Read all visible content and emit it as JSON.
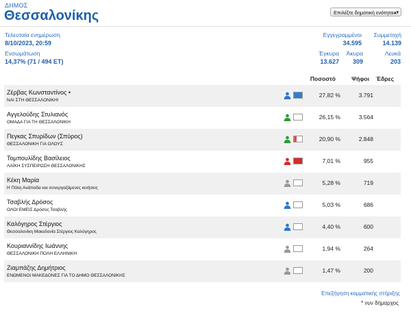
{
  "header": {
    "label": "ΔΗΜΟΣ",
    "name": "Θεσσαλονίκης",
    "select_label": "Επιλέξτε δημοτική ενότητα..."
  },
  "stats": {
    "last_update_label": "Τελευταία ενημέρωση",
    "last_update_value": "8/10/2023, 20:59",
    "integration_label": "Ενσωμάτωση",
    "integration_value": "14,37% (71 / 494 ΕΤ)",
    "registered_label": "Εγγεγραμμένοι",
    "registered_value": "34.595",
    "turnout_label": "Συμμετοχή",
    "turnout_value": "14.139",
    "valid_label": "Έγκυρα",
    "valid_value": "13.627",
    "invalid_label": "Άκυρα",
    "invalid_value": "309",
    "blank_label": "Λευκά",
    "blank_value": "203"
  },
  "table": {
    "headers": {
      "percent": "Ποσοστό",
      "votes": "Ψήφοι",
      "seats": "Έδρες"
    },
    "rows": [
      {
        "name": "Ζέρβας Κωνσταντίνος •",
        "party": "ΝΑΙ ΣΤΗ ΘΕΣΣΑΛΟΝΙΚΗ!",
        "percent": "27,82 %",
        "votes": "3.791",
        "person_color": "#2a77c9",
        "fill_color": "#2f7fd0",
        "fill_fraction": 1.0
      },
      {
        "name": "Αγγελούδης Στυλιανός",
        "party": "ΟΜΑΔΑ ΓΙΑ ΤΗ ΘΕΣΣΑΛΟΝΙΚΗ",
        "percent": "26,15 %",
        "votes": "3.564",
        "person_color": "#2e9a3a",
        "fill_color": "#ffffff",
        "fill_fraction": 0
      },
      {
        "name": "Πεγκας Σπυρίδων (Σπύρος)",
        "party": "ΘΕΣΣΑΛΟΝΙΚΗ ΓΙΑ ΟΛΟΥΣ",
        "percent": "20,90 %",
        "votes": "2.848",
        "person_color": "#2e9a3a",
        "fill_color": "#d9534f",
        "fill_fraction": 0.3
      },
      {
        "name": "Τομπουλίδης Βασίλειος",
        "party": "ΛΑΪΚΗ ΣΥΣΠΕΙΡΩΣΗ ΘΕΣΣΑΛΟΝΙΚΗΣ",
        "percent": "7,01 %",
        "votes": "955",
        "person_color": "#d52a2a",
        "fill_color": "#d52a2a",
        "fill_fraction": 1.0
      },
      {
        "name": "Κέκη Μαρία",
        "party": "Η Πόλη Ανάποδα και συνεργαζόμενες κινήσεις",
        "percent": "5,28 %",
        "votes": "719",
        "person_color": "#999999",
        "fill_color": "#ffffff",
        "fill_fraction": 0
      },
      {
        "name": "Τσαβλής Δρόσος",
        "party": "ΟΛΟΙ ΕΜΕΙΣ Δρόσος Τσαβλής",
        "percent": "5,03 %",
        "votes": "686",
        "person_color": "#2a77c9",
        "fill_color": "#ffffff",
        "fill_fraction": 0
      },
      {
        "name": "Καλόγηρος Στέργιος",
        "party": "Θεσσαλονίκη Μακεδονία Στέργιος Καλόγηρος",
        "percent": "4,40 %",
        "votes": "600",
        "person_color": "#2a77c9",
        "fill_color": "#ffffff",
        "fill_fraction": 0
      },
      {
        "name": "Κουριαννίδης Ιωάννης",
        "party": "ΘΕΣΣΑΛΟΝΙΚΗ ΠΟΛΗ ΕΛΛΗΝΙΚΗ",
        "percent": "1,94 %",
        "votes": "264",
        "person_color": "#999999",
        "fill_color": "#ffffff",
        "fill_fraction": 0
      },
      {
        "name": "Ζιαμπάζης Δημήτριος",
        "party": "ΕΝΩΜΕΝΟΙ ΜΑΚΕΔΟΝΕΣ ΓΙΑ ΤΟ ΔΗΜΟ ΘΕΣΣΑΛΟΝΙΚΗΣ",
        "percent": "1,47 %",
        "votes": "200",
        "person_color": "#999999",
        "fill_color": "#ffffff",
        "fill_fraction": 0
      }
    ]
  },
  "footer": {
    "link": "Επεξήγηση κομματικής στήριξης",
    "note": "* νυν δήμαρχος"
  }
}
